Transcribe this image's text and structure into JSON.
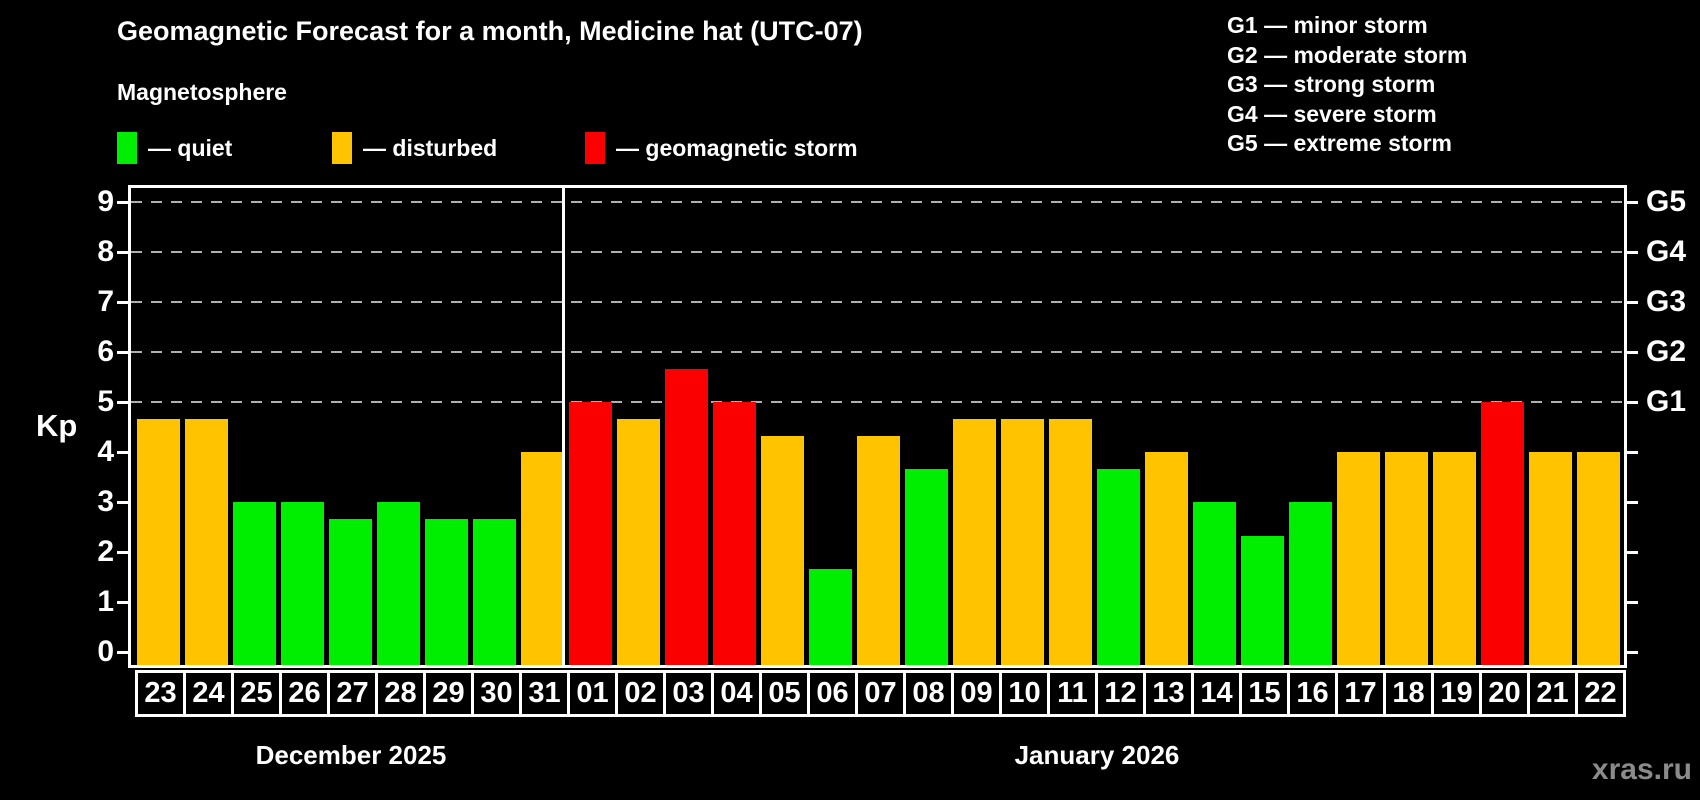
{
  "header": {
    "title": "Geomagnetic Forecast for a month, Medicine hat (UTC-07)",
    "subtitle": "Magnetosphere"
  },
  "legend": {
    "items": [
      {
        "key": "quiet",
        "label": "— quiet"
      },
      {
        "key": "disturbed",
        "label": "— disturbed"
      },
      {
        "key": "storm",
        "label": "— geomagnetic storm"
      }
    ]
  },
  "g_legend": {
    "items": [
      "G1 — minor storm",
      "G2 — moderate storm",
      "G3 — strong storm",
      "G4 — severe storm",
      "G5 — extreme storm"
    ]
  },
  "watermark": "xras.ru",
  "chart_data": {
    "type": "bar",
    "title": "Geomagnetic Forecast for a month, Medicine hat (UTC-07)",
    "ylabel": "Kp",
    "ylim": [
      0,
      9.3
    ],
    "yticks": [
      0,
      1,
      2,
      3,
      4,
      5,
      6,
      7,
      8,
      9
    ],
    "grid_kp": [
      5,
      6,
      7,
      8,
      9
    ],
    "grid_on": true,
    "legend_position": "top-left",
    "right_axis": [
      {
        "label": "G1",
        "kp": 5
      },
      {
        "label": "G2",
        "kp": 6
      },
      {
        "label": "G3",
        "kp": 7
      },
      {
        "label": "G4",
        "kp": 8
      },
      {
        "label": "G5",
        "kp": 9
      }
    ],
    "status_colors": {
      "quiet": "#00ee00",
      "disturbed": "#ffc300",
      "storm": "#fb0000"
    },
    "months": [
      {
        "label": "December 2025",
        "bar_count": 9
      },
      {
        "label": "January 2026",
        "bar_count": 22
      }
    ],
    "bars": [
      {
        "day": "23",
        "kp": 4.67,
        "status": "disturbed"
      },
      {
        "day": "24",
        "kp": 4.67,
        "status": "disturbed"
      },
      {
        "day": "25",
        "kp": 3.0,
        "status": "quiet"
      },
      {
        "day": "26",
        "kp": 3.0,
        "status": "quiet"
      },
      {
        "day": "27",
        "kp": 2.67,
        "status": "quiet"
      },
      {
        "day": "28",
        "kp": 3.0,
        "status": "quiet"
      },
      {
        "day": "29",
        "kp": 2.67,
        "status": "quiet"
      },
      {
        "day": "30",
        "kp": 2.67,
        "status": "quiet"
      },
      {
        "day": "31",
        "kp": 4.0,
        "status": "disturbed"
      },
      {
        "day": "01",
        "kp": 5.0,
        "status": "storm"
      },
      {
        "day": "02",
        "kp": 4.67,
        "status": "disturbed"
      },
      {
        "day": "03",
        "kp": 5.67,
        "status": "storm"
      },
      {
        "day": "04",
        "kp": 5.0,
        "status": "storm"
      },
      {
        "day": "05",
        "kp": 4.33,
        "status": "disturbed"
      },
      {
        "day": "06",
        "kp": 1.67,
        "status": "quiet"
      },
      {
        "day": "07",
        "kp": 4.33,
        "status": "disturbed"
      },
      {
        "day": "08",
        "kp": 3.67,
        "status": "quiet"
      },
      {
        "day": "09",
        "kp": 4.67,
        "status": "disturbed"
      },
      {
        "day": "10",
        "kp": 4.67,
        "status": "disturbed"
      },
      {
        "day": "11",
        "kp": 4.67,
        "status": "disturbed"
      },
      {
        "day": "12",
        "kp": 3.67,
        "status": "quiet"
      },
      {
        "day": "13",
        "kp": 4.0,
        "status": "disturbed"
      },
      {
        "day": "14",
        "kp": 3.0,
        "status": "quiet"
      },
      {
        "day": "15",
        "kp": 2.33,
        "status": "quiet"
      },
      {
        "day": "16",
        "kp": 3.0,
        "status": "quiet"
      },
      {
        "day": "17",
        "kp": 4.0,
        "status": "disturbed"
      },
      {
        "day": "18",
        "kp": 4.0,
        "status": "disturbed"
      },
      {
        "day": "19",
        "kp": 4.0,
        "status": "disturbed"
      },
      {
        "day": "20",
        "kp": 5.0,
        "status": "storm"
      },
      {
        "day": "21",
        "kp": 4.0,
        "status": "disturbed"
      },
      {
        "day": "22",
        "kp": 4.0,
        "status": "disturbed"
      }
    ]
  }
}
